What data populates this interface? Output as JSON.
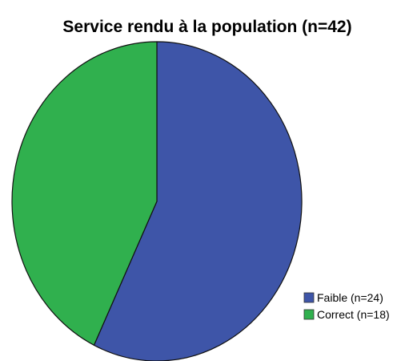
{
  "chart_data": {
    "type": "pie",
    "title": "Service rendu à la population (n=42)",
    "slices": [
      {
        "label": "Faible (n=24)",
        "value": 24,
        "color": "#3E55A8"
      },
      {
        "label": "Correct (n=18)",
        "value": 18,
        "color": "#30B04E"
      }
    ],
    "legend_position": "bottom-right",
    "start_angle_deg": 0,
    "direction": "clockwise"
  }
}
